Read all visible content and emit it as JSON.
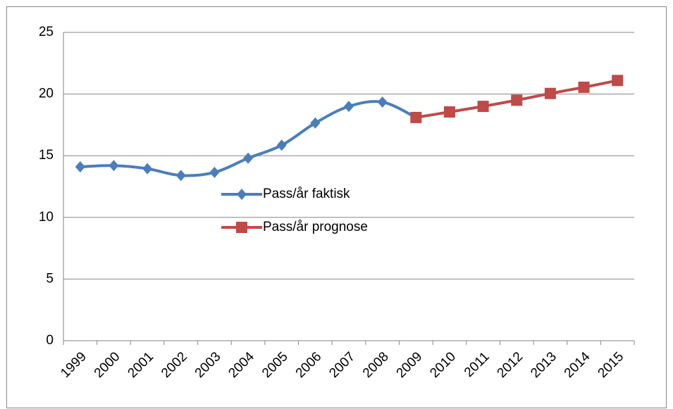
{
  "chart_data": {
    "type": "line",
    "categories": [
      "1999",
      "2000",
      "2001",
      "2002",
      "2003",
      "2004",
      "2005",
      "2006",
      "2007",
      "2008",
      "2009",
      "2010",
      "2011",
      "2012",
      "2013",
      "2014",
      "2015"
    ],
    "series": [
      {
        "name": "Pass/år faktisk",
        "color": "#4a7ebb",
        "marker": "diamond",
        "values": [
          14.1,
          14.2,
          13.95,
          13.4,
          13.65,
          14.8,
          15.85,
          17.65,
          19.0,
          19.35,
          18.1,
          null,
          null,
          null,
          null,
          null,
          null
        ]
      },
      {
        "name": "Pass/år prognose",
        "color": "#be4b48",
        "marker": "square",
        "values": [
          null,
          null,
          null,
          null,
          null,
          null,
          null,
          null,
          null,
          null,
          18.1,
          18.55,
          19.0,
          19.5,
          20.05,
          20.55,
          21.1
        ]
      }
    ],
    "ylim": [
      0,
      25
    ],
    "yticks": [
      0,
      5,
      10,
      15,
      20,
      25
    ],
    "grid": true,
    "smooth": true
  }
}
